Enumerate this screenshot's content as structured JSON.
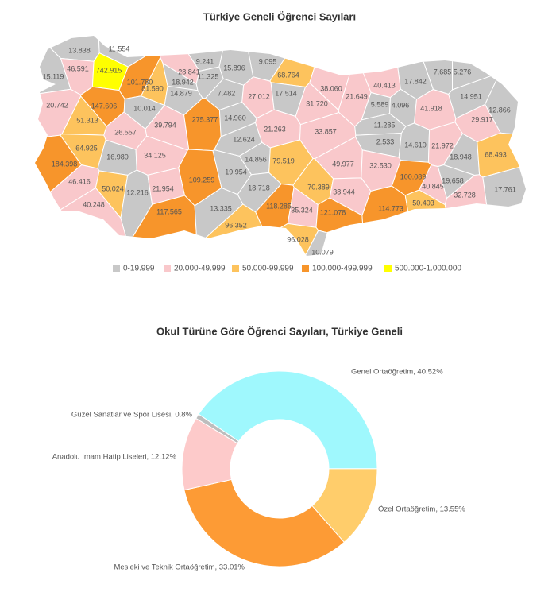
{
  "chart_data": [
    {
      "type": "choropleth",
      "title": "Türkiye Geneli Öğrenci Sayıları",
      "values": [
        13838,
        11554,
        15119,
        46591,
        742915,
        9241,
        28841,
        15896,
        9095,
        68764,
        11325,
        101780,
        81590,
        18942,
        14879,
        7482,
        27012,
        17514,
        38060,
        40413,
        17842,
        7685,
        5276,
        20742,
        147606,
        10014,
        31720,
        21649,
        5589,
        4096,
        41918,
        14951,
        12866,
        51313,
        39794,
        275377,
        14960,
        21263,
        33857,
        11285,
        29917,
        26557,
        12624,
        2533,
        14610,
        21972,
        64925,
        16980,
        34125,
        14856,
        79519,
        49977,
        32530,
        18948,
        68493,
        184398,
        109259,
        19954,
        70389,
        100089,
        46416,
        50024,
        12216,
        21954,
        18718,
        38944,
        40845,
        19658,
        17761,
        40248,
        117565,
        13335,
        118285,
        35324,
        121078,
        114773,
        50403,
        32728,
        96352,
        96028,
        10079
      ],
      "value_labels": [
        "13.838",
        "11.554",
        "15.119",
        "46.591",
        "742.915",
        "9.241",
        "28.841",
        "15.896",
        "9.095",
        "68.764",
        "11.325",
        "101.780",
        "81.590",
        "18.942",
        "14.879",
        "7.482",
        "27.012",
        "17.514",
        "38.060",
        "40.413",
        "17.842",
        "7.685",
        "5.276",
        "20.742",
        "147.606",
        "10.014",
        "31.720",
        "21.649",
        "5.589",
        "4.096",
        "41.918",
        "14.951",
        "12.866",
        "51.313",
        "39.794",
        "275.377",
        "14.960",
        "21.263",
        "33.857",
        "11.285",
        "29.917",
        "26.557",
        "12.624",
        "2.533",
        "14.610",
        "21.972",
        "64.925",
        "16.980",
        "34.125",
        "14.856",
        "79.519",
        "49.977",
        "32.530",
        "18.948",
        "68.493",
        "184.398",
        "109.259",
        "19.954",
        "70.389",
        "100.089",
        "46.416",
        "50.024",
        "12.216",
        "21.954",
        "18.718",
        "38.944",
        "40.845",
        "19.658",
        "17.761",
        "40.248",
        "117.565",
        "13.335",
        "118.285",
        "35.324",
        "121.078",
        "114.773",
        "50.403",
        "32.728",
        "96.352",
        "96.028",
        "10.079"
      ],
      "legend": [
        {
          "label": "0-19.999",
          "range": [
            0,
            19999
          ],
          "color": "#c8c8c8"
        },
        {
          "label": "20.000-49.999",
          "range": [
            20000,
            49999
          ],
          "color": "#f9c8cb"
        },
        {
          "label": "50.000-99.999",
          "range": [
            50000,
            99999
          ],
          "color": "#fdc35d"
        },
        {
          "label": "100.000-499.999",
          "range": [
            100000,
            499999
          ],
          "color": "#f7952b"
        },
        {
          "label": "500.000-1.000.000",
          "range": [
            500000,
            1000000
          ],
          "color": "#ffff00"
        }
      ]
    },
    {
      "type": "donut",
      "title": "Okul Türüne Göre Öğrenci Sayıları, Türkiye Geneli",
      "values": [
        40.52,
        13.55,
        33.01,
        12.12,
        0.8
      ],
      "value_labels": [
        "Genel Ortaöğretim, 40.52%",
        "Özel Ortaöğretim, 13.55%",
        "Mesleki ve Teknik Ortaöğretim, 33.01%",
        "Anadolu İmam Hatip Liseleri, 12.12%",
        "Güzel Sanatlar ve Spor Lisesi, 0.8%"
      ],
      "colors": [
        "#9ff8fd",
        "#ffcd6b",
        "#fd9b35",
        "#fdcaca",
        "#bdbdbd"
      ]
    }
  ]
}
